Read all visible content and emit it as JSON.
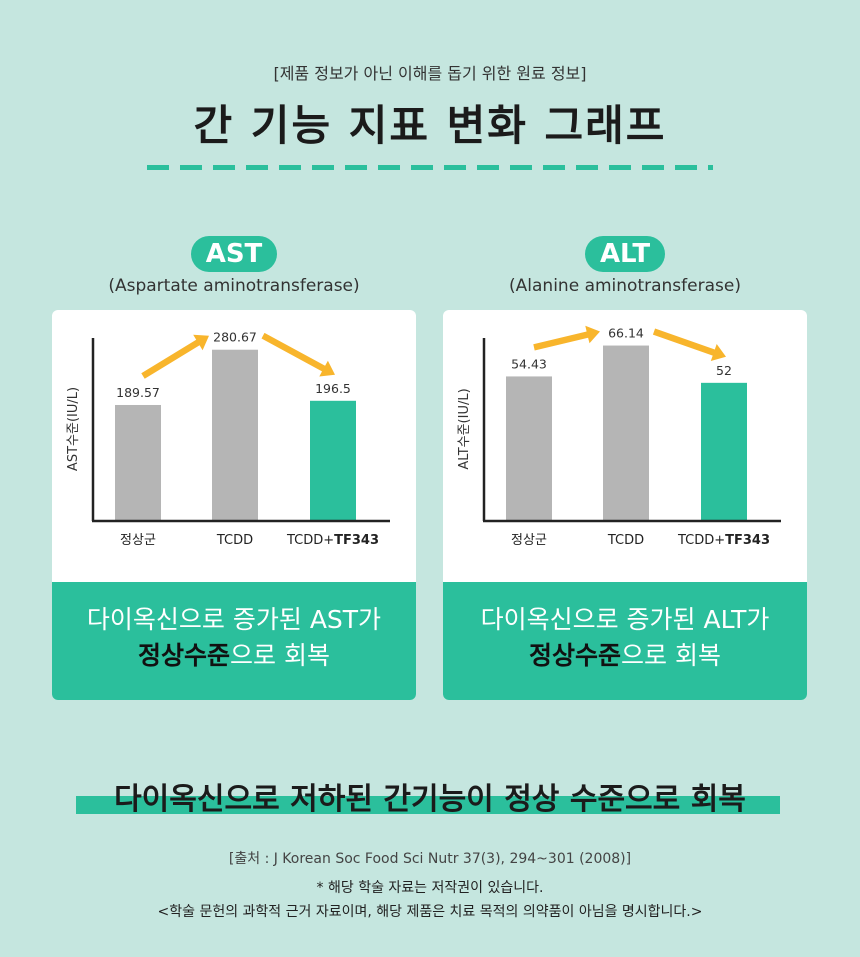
{
  "header": {
    "disclaimer": "[제품 정보가 아닌 이해를 돕기 위한 원료 정보]",
    "title": "간 기능 지표 변화 그래프"
  },
  "colors": {
    "background": "#c5e6df",
    "accent": "#2bbf9c",
    "gray_bar": "#b5b5b5",
    "arrow": "#f8b52c"
  },
  "chart_data": [
    {
      "type": "bar",
      "badge": "AST",
      "subtitle": "(Aspartate aminotransferase)",
      "ylabel": "AST수준(IU/L)",
      "categories": [
        "정상군",
        "TCDD",
        "TCDD+TF343"
      ],
      "category_prefix": [
        "정상군",
        "TCDD",
        "TCDD+"
      ],
      "category_bold": [
        "",
        "",
        "TF343"
      ],
      "values": [
        189.57,
        280.67,
        196.5
      ],
      "value_labels": [
        "189.57",
        "280.67",
        "196.5"
      ],
      "highlight_index": 2,
      "ylim": [
        0,
        300
      ],
      "caption_line1": "다이옥신으로 증가된 AST가",
      "caption_bold": "정상수준",
      "caption_rest": "으로 회복"
    },
    {
      "type": "bar",
      "badge": "ALT",
      "subtitle": "(Alanine aminotransferase)",
      "ylabel": "ALT수준(IU/L)",
      "categories": [
        "정상군",
        "TCDD",
        "TCDD+TF343"
      ],
      "category_prefix": [
        "정상군",
        "TCDD",
        "TCDD+"
      ],
      "category_bold": [
        "",
        "",
        "TF343"
      ],
      "values": [
        54.43,
        66.14,
        52
      ],
      "value_labels": [
        "54.43",
        "66.14",
        "52"
      ],
      "highlight_index": 2,
      "ylim": [
        0,
        69
      ],
      "caption_line1": "다이옥신으로 증가된 ALT가",
      "caption_bold": "정상수준",
      "caption_rest": "으로 회복"
    }
  ],
  "footer": {
    "conclusion": "다이옥신으로 저하된 간기능이 정상 수준으로 회복",
    "source": "[출처 : J Korean Soc Food Sci Nutr 37(3), 294~301 (2008)]",
    "copyright": "* 해당 학술 자료는 저작권이 있습니다.",
    "notice": "<학술 문헌의 과학적 근거 자료이며, 해당 제품은 치료 목적의 의약품이 아님을 명시합니다.>"
  }
}
